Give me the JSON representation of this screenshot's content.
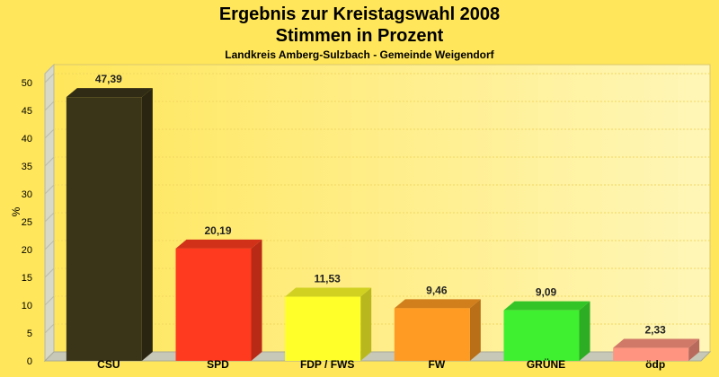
{
  "chart_data": {
    "type": "bar",
    "title": "Ergebnis zur Kreistagswahl 2008",
    "title2": "Stimmen in Prozent",
    "subtitle": "Landkreis Amberg-Sulzbach - Gemeinde Weigendorf",
    "ylabel": "%",
    "xlabel": "",
    "ylim": [
      0,
      50
    ],
    "yticks": [
      0,
      5,
      10,
      15,
      20,
      25,
      30,
      35,
      40,
      45,
      50
    ],
    "grid": true,
    "legend": "none",
    "categories": [
      "CSU",
      "SPD",
      "FDP / FWS",
      "FW",
      "GRÜNE",
      "ödp"
    ],
    "values": [
      47.39,
      20.19,
      11.53,
      9.46,
      9.09,
      2.33
    ],
    "value_labels": [
      "47,39",
      "20,19",
      "11,53",
      "9,46",
      "9,09",
      "2,33"
    ],
    "colors": [
      "#3a3418",
      "#ff3a1e",
      "#ffff2a",
      "#ff9a22",
      "#3ef030",
      "#ff9480"
    ],
    "background_color": "#ffe65a"
  }
}
